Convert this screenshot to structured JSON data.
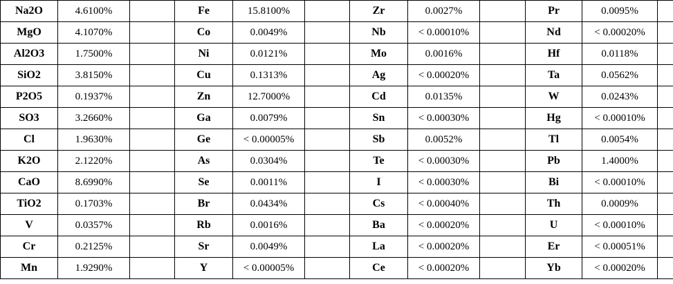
{
  "rows": [
    [
      [
        "Na2O",
        "4.6100%"
      ],
      [
        "Fe",
        "15.8100%"
      ],
      [
        "Zr",
        "0.0027%"
      ],
      [
        "Pr",
        "0.0095%"
      ]
    ],
    [
      [
        "MgO",
        "4.1070%"
      ],
      [
        "Co",
        "0.0049%"
      ],
      [
        "Nb",
        "< 0.00010%"
      ],
      [
        "Nd",
        "< 0.00020%"
      ]
    ],
    [
      [
        "Al2O3",
        "1.7500%"
      ],
      [
        "Ni",
        "0.0121%"
      ],
      [
        "Mo",
        "0.0016%"
      ],
      [
        "Hf",
        "0.0118%"
      ]
    ],
    [
      [
        "SiO2",
        "3.8150%"
      ],
      [
        "Cu",
        "0.1313%"
      ],
      [
        "Ag",
        "< 0.00020%"
      ],
      [
        "Ta",
        "0.0562%"
      ]
    ],
    [
      [
        "P2O5",
        "0.1937%"
      ],
      [
        "Zn",
        "12.7000%"
      ],
      [
        "Cd",
        "0.0135%"
      ],
      [
        "W",
        "0.0243%"
      ]
    ],
    [
      [
        "SO3",
        "3.2660%"
      ],
      [
        "Ga",
        "0.0079%"
      ],
      [
        "Sn",
        "< 0.00030%"
      ],
      [
        "Hg",
        "< 0.00010%"
      ]
    ],
    [
      [
        "Cl",
        "1.9630%"
      ],
      [
        "Ge",
        "< 0.00005%"
      ],
      [
        "Sb",
        "0.0052%"
      ],
      [
        "Tl",
        "0.0054%"
      ]
    ],
    [
      [
        "K2O",
        "2.1220%"
      ],
      [
        "As",
        "0.0304%"
      ],
      [
        "Te",
        "< 0.00030%"
      ],
      [
        "Pb",
        "1.4000%"
      ]
    ],
    [
      [
        "CaO",
        "8.6990%"
      ],
      [
        "Se",
        "0.0011%"
      ],
      [
        "I",
        "< 0.00030%"
      ],
      [
        "Bi",
        "< 0.00010%"
      ]
    ],
    [
      [
        "TiO2",
        "0.1703%"
      ],
      [
        "Br",
        "0.0434%"
      ],
      [
        "Cs",
        "< 0.00040%"
      ],
      [
        "Th",
        "0.0009%"
      ]
    ],
    [
      [
        "V",
        "0.0357%"
      ],
      [
        "Rb",
        "0.0016%"
      ],
      [
        "Ba",
        "< 0.00020%"
      ],
      [
        "U",
        "< 0.00010%"
      ]
    ],
    [
      [
        "Cr",
        "0.2125%"
      ],
      [
        "Sr",
        "0.0049%"
      ],
      [
        "La",
        "< 0.00020%"
      ],
      [
        "Er",
        "< 0.00051%"
      ]
    ],
    [
      [
        "Mn",
        "1.9290%"
      ],
      [
        "Y",
        "< 0.00005%"
      ],
      [
        "Ce",
        "< 0.00020%"
      ],
      [
        "Yb",
        "< 0.00020%"
      ]
    ]
  ]
}
